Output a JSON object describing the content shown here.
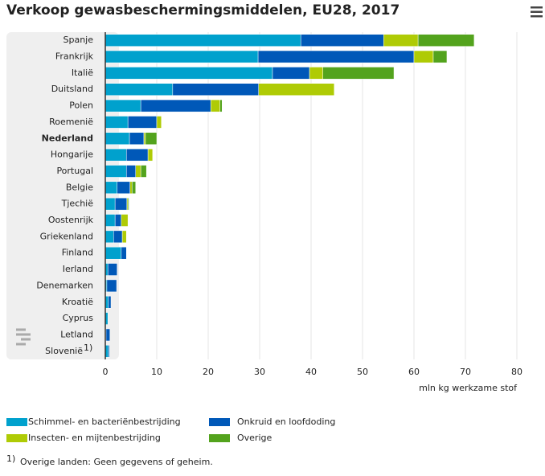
{
  "chart_data": {
    "type": "stacked-bar-horizontal",
    "title": "Verkoop gewasbeschermingsmiddelen, EU28, 2017",
    "categories": [
      "Spanje",
      "Frankrijk",
      "Italië",
      "Duitsland",
      "Polen",
      "Roemenië",
      "Nederland",
      "Hongarije",
      "Portugal",
      "Belgie",
      "Tjechië",
      "Oostenrijk",
      "Griekenland",
      "Finland",
      "Ierland",
      "Denemarken",
      "Kroatië",
      "Cyprus",
      "Letland",
      "Slovenië"
    ],
    "highlight": "Nederland",
    "series": [
      {
        "name": "Schimmel- en bacteriënbestrijding",
        "color": "#00a1cd",
        "values": [
          38.0,
          29.7,
          32.5,
          13.1,
          6.9,
          4.4,
          4.7,
          4.1,
          4.1,
          2.3,
          1.9,
          1.9,
          1.6,
          3.1,
          0.5,
          0.3,
          0.6,
          0.5,
          0.15,
          0.6
        ]
      },
      {
        "name": "Onkruid en loofdoding",
        "color": "#0058b8",
        "values": [
          16.1,
          30.3,
          7.2,
          16.7,
          13.6,
          5.6,
          2.8,
          4.2,
          1.8,
          2.5,
          2.3,
          1.2,
          1.7,
          1.0,
          1.8,
          1.9,
          0.5,
          0,
          0.75,
          0.2
        ]
      },
      {
        "name": "Insecten- en mijtenbestrijding",
        "color": "#afcb05",
        "values": [
          6.7,
          3.75,
          2.6,
          14.7,
          1.8,
          0.9,
          0.3,
          0.9,
          1.0,
          0.4,
          0.2,
          1.3,
          0.8,
          0,
          0,
          0,
          0,
          0,
          0,
          0
        ]
      },
      {
        "name": "Overige",
        "color": "#53a31d",
        "values": [
          10.9,
          2.65,
          13.8,
          0,
          0.4,
          0,
          2.2,
          0,
          1.1,
          0.7,
          0.2,
          0,
          0,
          0,
          0,
          0,
          0,
          0,
          0,
          0
        ]
      }
    ],
    "xlim": [
      0,
      80
    ],
    "xticks": [
      0,
      10,
      20,
      30,
      40,
      50,
      60,
      70,
      80
    ],
    "x_label": "mln kg werkzame stof",
    "grid": true,
    "footnote": {
      "category": "Slovenië",
      "marker": "1)",
      "text": "Overige landen: Geen gegevens of geheim."
    }
  }
}
